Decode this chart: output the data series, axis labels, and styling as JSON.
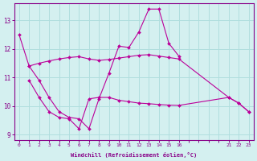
{
  "xlabel": "Windchill (Refroidissement éolien,°C)",
  "bg_color": "#d4f0f0",
  "grid_color": "#b0dede",
  "line_color": "#bb0099",
  "s1x": [
    0,
    1,
    2,
    3,
    4,
    5,
    6,
    7,
    8,
    9,
    10,
    11,
    12,
    13,
    14,
    15,
    16
  ],
  "s1y": [
    12.5,
    11.4,
    10.9,
    10.3,
    9.8,
    9.6,
    9.55,
    9.2,
    10.25,
    11.15,
    12.1,
    12.05,
    12.6,
    13.4,
    13.4,
    12.2,
    11.75
  ],
  "s2x": [
    1,
    2,
    3,
    4,
    5,
    6,
    7,
    8,
    9,
    10,
    11,
    12,
    13,
    14,
    15,
    16,
    21,
    22,
    23
  ],
  "s2y": [
    11.4,
    11.5,
    11.58,
    11.65,
    11.7,
    11.73,
    11.65,
    11.6,
    11.63,
    11.68,
    11.73,
    11.78,
    11.8,
    11.75,
    11.7,
    11.65,
    10.3,
    10.1,
    9.8
  ],
  "s3x": [
    1,
    2,
    3,
    4,
    5,
    6,
    7,
    8,
    9,
    10,
    11,
    12,
    13,
    14,
    15,
    16,
    21,
    22,
    23
  ],
  "s3y": [
    10.9,
    10.3,
    9.8,
    9.6,
    9.55,
    9.2,
    10.25,
    10.3,
    10.3,
    10.2,
    10.15,
    10.1,
    10.08,
    10.05,
    10.03,
    10.02,
    10.3,
    10.1,
    9.8
  ],
  "ylim": [
    8.8,
    13.6
  ],
  "yticks": [
    9,
    10,
    11,
    12,
    13
  ],
  "xtick_pos": [
    0,
    1,
    2,
    3,
    4,
    5,
    6,
    7,
    8,
    9,
    10,
    11,
    12,
    13,
    14,
    15,
    16,
    17,
    18,
    19,
    20,
    21,
    22,
    23
  ],
  "xtick_labels": [
    "0",
    "1",
    "2",
    "3",
    "4",
    "5",
    "6",
    "7",
    "8",
    "9",
    "10",
    "11",
    "12",
    "13",
    "14",
    "15",
    "16",
    "",
    "",
    "",
    "",
    "21",
    "22",
    "23"
  ]
}
